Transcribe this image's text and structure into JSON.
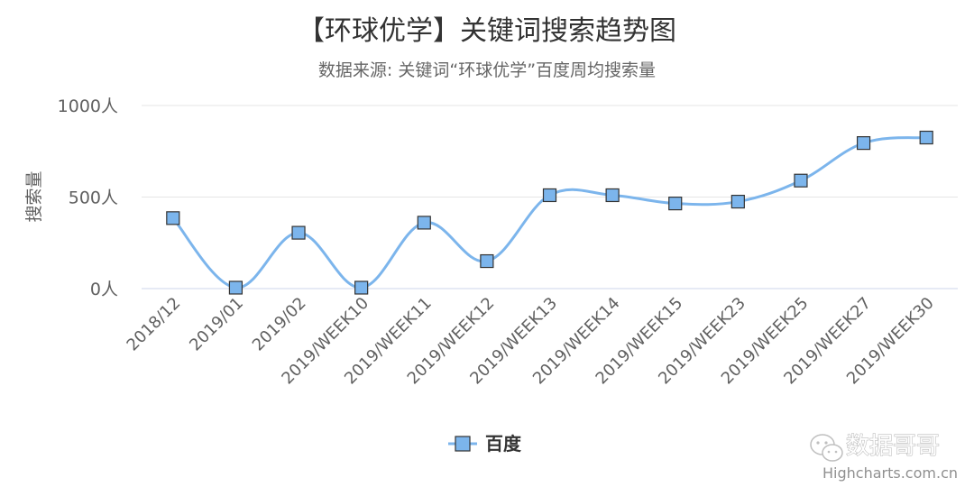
{
  "chart_data": {
    "type": "line",
    "title": "【环球优学】关键词搜索趋势图",
    "subtitle": "数据来源: 关键词“环球优学”百度周均搜索量",
    "ylabel": "搜索量",
    "ytick_labels": [
      "0人",
      "500人",
      "1000人"
    ],
    "yticks": [
      0,
      500,
      1000
    ],
    "ylim": [
      0,
      1000
    ],
    "categories": [
      "2018/12",
      "2019/01",
      "2019/02",
      "2019/WEEK10",
      "2019/WEEK11",
      "2019/WEEK12",
      "2019/WEEK13",
      "2019/WEEK14",
      "2019/WEEK15",
      "2019/WEEK23",
      "2019/WEEK25",
      "2019/WEEK27",
      "2019/WEEK30"
    ],
    "series": [
      {
        "name": "百度",
        "color": "#7CB5EC",
        "marker": "square",
        "values": [
          385,
          5,
          305,
          5,
          360,
          150,
          510,
          510,
          465,
          475,
          590,
          795,
          825
        ]
      }
    ],
    "grid": true,
    "legend_position": "bottom-center"
  },
  "credits": "Highcharts.com.cn",
  "watermark": {
    "icon": "wechat-icon",
    "text": "数据哥哥"
  }
}
